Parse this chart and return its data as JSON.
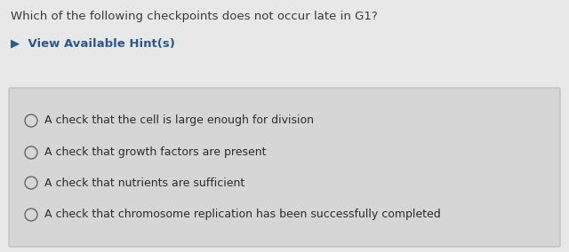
{
  "bg_color": "#e8e8e8",
  "question_text": "Which of the following checkpoints does not occur late in G1?",
  "hint_text": "▶  View Available Hint(s)",
  "hint_color": "#2a5a8c",
  "options": [
    "A check that the cell is large enough for division",
    "A check that growth factors are present",
    "A check that nutrients are sufficient",
    "A check that chromosome replication has been successfully completed"
  ],
  "option_text_color": "#2c2c2c",
  "question_text_color": "#3a3a3a",
  "box_bg_color": "#d6d6d6",
  "box_border_color": "#b8b8b8",
  "circle_edge_color": "#666666",
  "question_fontsize": 9.5,
  "hint_fontsize": 9.5,
  "option_fontsize": 9.0
}
